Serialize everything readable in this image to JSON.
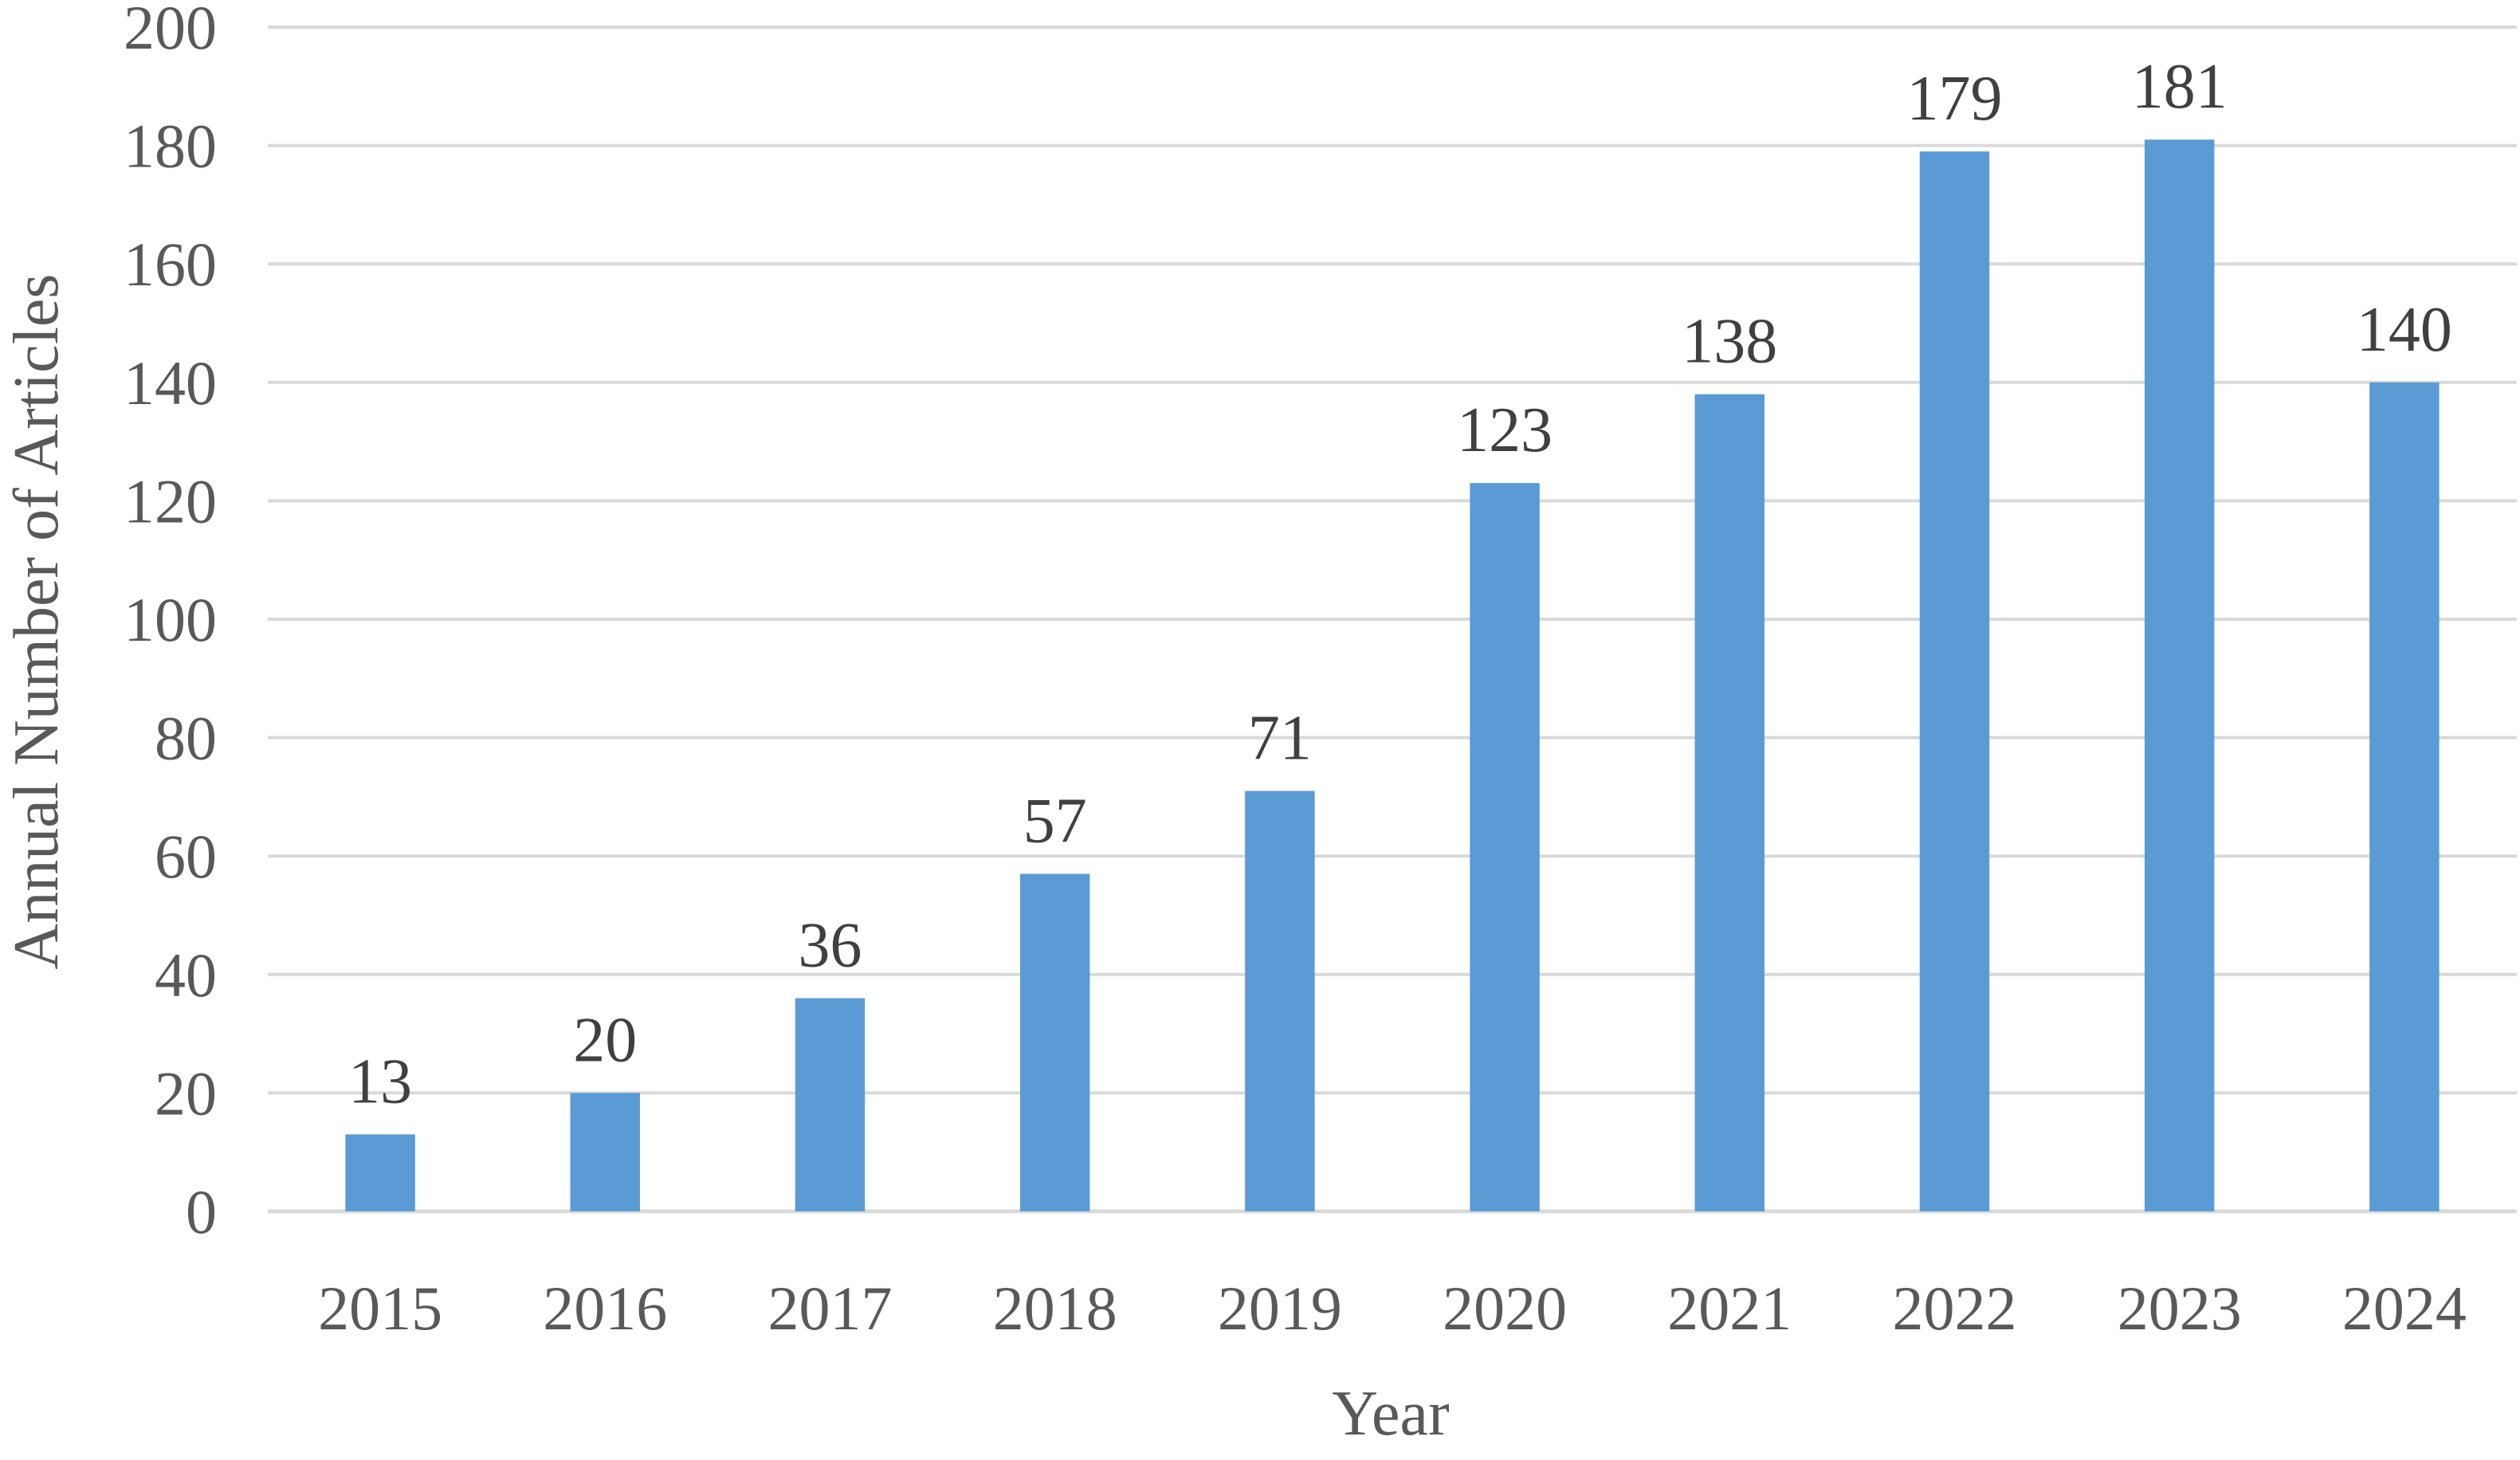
{
  "chart_data": {
    "type": "bar",
    "title": "",
    "xlabel": "Year",
    "ylabel": "Annual Number of Articles",
    "categories": [
      "2015",
      "2016",
      "2017",
      "2018",
      "2019",
      "2020",
      "2021",
      "2022",
      "2023",
      "2024"
    ],
    "values": [
      13,
      20,
      36,
      57,
      71,
      123,
      138,
      179,
      181,
      140
    ],
    "data_labels": [
      "13",
      "20",
      "36",
      "57",
      "71",
      "123",
      "138",
      "179",
      "181",
      "140"
    ],
    "ylim": [
      0,
      200
    ],
    "yticks": [
      0,
      20,
      40,
      60,
      80,
      100,
      120,
      140,
      160,
      180,
      200
    ],
    "ytick_labels": [
      "0",
      "20",
      "40",
      "60",
      "80",
      "100",
      "120",
      "140",
      "160",
      "180",
      "200"
    ],
    "grid": true,
    "legend": "none",
    "colors": {
      "bar": "#5B9BD5",
      "grid": "#D9D9D9",
      "axis_text": "#595959",
      "data_label_text": "#404040"
    }
  }
}
